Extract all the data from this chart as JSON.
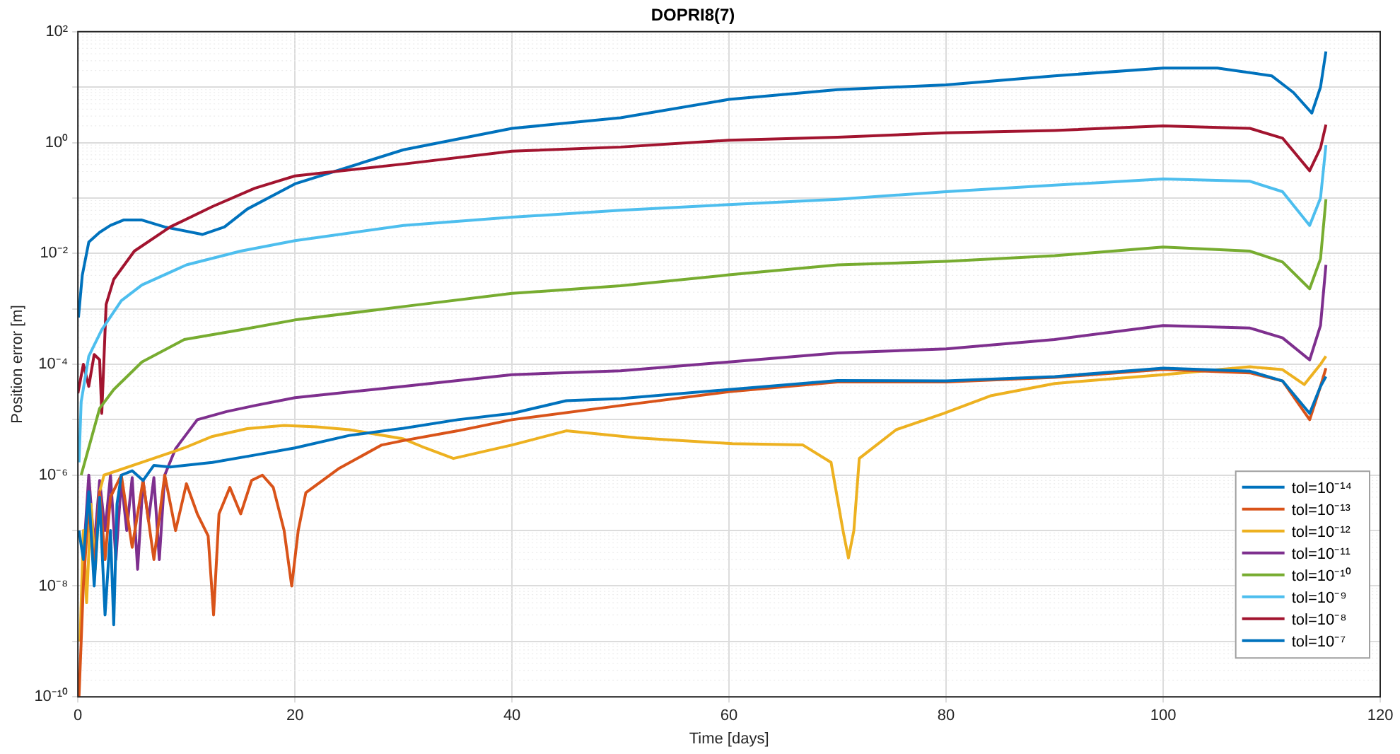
{
  "chart_data": {
    "type": "line",
    "title": "DOPRI8(7)",
    "xlabel": "Time [days]",
    "ylabel": "Position error [m]",
    "log": "y",
    "grid": true,
    "legend": "bottom right",
    "marker": "none",
    "line_style": "solid",
    "xlim": [
      0,
      120
    ],
    "xticks": [
      0,
      20,
      40,
      60,
      80,
      100,
      120
    ],
    "ylim": [
      1e-10,
      100
    ],
    "yticks": [
      {
        "value": 1e-10,
        "label": "10⁻¹⁰"
      },
      {
        "value": 1e-09,
        "label": null
      },
      {
        "value": 1e-08,
        "label": "10⁻⁸"
      },
      {
        "value": 1e-07,
        "label": null
      },
      {
        "value": 1e-06,
        "label": "10⁻⁶"
      },
      {
        "value": 1e-05,
        "label": null
      },
      {
        "value": 0.0001,
        "label": "10⁻⁴"
      },
      {
        "value": 0.001,
        "label": null
      },
      {
        "value": 0.01,
        "label": "10⁻²"
      },
      {
        "value": 0.1,
        "label": null
      },
      {
        "value": 1,
        "label": "10⁰"
      },
      {
        "value": 10,
        "label": null
      },
      {
        "value": 100,
        "label": "10²"
      }
    ],
    "series": [
      {
        "name": "tol=10⁻¹⁴",
        "color": "#0072bd",
        "x": [
          0.1,
          0.5,
          1,
          1.5,
          2,
          2.5,
          3,
          3.3,
          3.6,
          4,
          5,
          6,
          7,
          8.5,
          12.4,
          16.3,
          20,
          25,
          30,
          35,
          40,
          45,
          50,
          60,
          70,
          80,
          90,
          100,
          108,
          111,
          113.5,
          114.5,
          115
        ],
        "values": [
          1e-07,
          3e-08,
          5e-07,
          1e-08,
          4e-07,
          3e-09,
          1e-07,
          2e-09,
          3e-07,
          1e-06,
          1.2e-06,
          8e-07,
          1.5e-06,
          1.4e-06,
          1.7e-06,
          2.3e-06,
          3.1e-06,
          5.2e-06,
          7e-06,
          1e-05,
          1.3e-05,
          2.2e-05,
          2.4e-05,
          3.5e-05,
          5.1e-05,
          5e-05,
          6e-05,
          8.5e-05,
          7.5e-05,
          5e-05,
          1.3e-05,
          4e-05,
          6e-05
        ]
      },
      {
        "name": "tol=10⁻¹³",
        "color": "#d95319",
        "x": [
          0.1,
          0.5,
          1,
          1.5,
          2,
          2.5,
          3,
          4,
          5,
          6,
          7,
          8,
          9,
          10,
          11,
          12,
          12.5,
          13,
          14,
          15,
          16,
          17,
          18,
          19,
          19.7,
          20.3,
          21,
          24,
          28,
          30,
          35,
          40,
          50,
          60,
          70,
          80,
          90,
          100,
          108,
          111,
          113.5,
          114.5,
          115
        ],
        "values": [
          1e-10,
          1e-08,
          3e-07,
          2e-08,
          5e-07,
          3e-08,
          4e-07,
          1e-06,
          5e-08,
          8e-07,
          3e-08,
          1e-06,
          1e-07,
          7e-07,
          2e-07,
          8e-08,
          3e-09,
          2e-07,
          6e-07,
          2e-07,
          8e-07,
          1e-06,
          6e-07,
          1e-07,
          1e-08,
          1e-07,
          4.8e-07,
          1.3e-06,
          3.5e-06,
          4.2e-06,
          6.3e-06,
          1e-05,
          1.8e-05,
          3.2e-05,
          4.8e-05,
          4.8e-05,
          5.8e-05,
          8.1e-05,
          7e-05,
          5e-05,
          1e-05,
          4e-05,
          8.5e-05
        ]
      },
      {
        "name": "tol=10⁻¹²",
        "color": "#edb120",
        "x": [
          0.2,
          0.5,
          0.8,
          1.2,
          1.6,
          2,
          2.4,
          5.9,
          9.8,
          12.4,
          15.6,
          19,
          22,
          25,
          30,
          32,
          34.6,
          40,
          45,
          51.5,
          60.3,
          66.8,
          69.4,
          70.5,
          71,
          71.5,
          72,
          75.4,
          79.8,
          84.1,
          90,
          100,
          108,
          111,
          113,
          114.5,
          115
        ],
        "values": [
          1e-09,
          1e-07,
          5e-09,
          3e-07,
          2e-08,
          5e-07,
          1e-06,
          1.7e-06,
          3.1e-06,
          5e-06,
          6.9e-06,
          7.9e-06,
          7.4e-06,
          6.6e-06,
          4.5e-06,
          3.1e-06,
          2e-06,
          3.5e-06,
          6.3e-06,
          4.7e-06,
          3.7e-06,
          3.5e-06,
          1.7e-06,
          1e-07,
          3.2e-08,
          1e-07,
          2e-06,
          6.6e-06,
          1.3e-05,
          2.7e-05,
          4.5e-05,
          6.5e-05,
          9e-05,
          8e-05,
          4.3e-05,
          0.0001,
          0.00014
        ]
      },
      {
        "name": "tol=10⁻¹¹",
        "color": "#7e2f8e",
        "x": [
          0.5,
          1,
          1.5,
          2,
          2.5,
          3,
          3.5,
          4,
          4.5,
          5,
          5.5,
          6,
          6.5,
          7,
          7.5,
          8,
          9,
          11,
          13.7,
          16.3,
          20,
          30,
          40,
          50,
          60,
          70,
          80,
          90,
          100,
          108,
          111,
          113.5,
          114.5,
          115
        ],
        "values": [
          3e-08,
          1e-06,
          5e-08,
          8e-07,
          1e-07,
          1e-06,
          3e-08,
          8e-07,
          1e-07,
          9e-07,
          2e-08,
          8e-07,
          1.5e-07,
          9e-07,
          3e-08,
          1e-06,
          3e-06,
          1e-05,
          1.4e-05,
          1.8e-05,
          2.5e-05,
          4e-05,
          6.5e-05,
          7.6e-05,
          0.00011,
          0.00016,
          0.00019,
          0.00028,
          0.0005,
          0.00045,
          0.0003,
          0.00012,
          0.0005,
          0.0062
        ]
      },
      {
        "name": "tol=10⁻¹⁰",
        "color": "#77ac30",
        "x": [
          0.3,
          2,
          3.3,
          5.9,
          9.8,
          15,
          20,
          30,
          40,
          50,
          60,
          70,
          80,
          90,
          100,
          108,
          111,
          113.5,
          114.5,
          115
        ],
        "values": [
          1e-06,
          1.6e-05,
          3.5e-05,
          0.00011,
          0.00028,
          0.00042,
          0.00063,
          0.0011,
          0.0019,
          0.0026,
          0.0041,
          0.0062,
          0.0072,
          0.0091,
          0.013,
          0.011,
          0.007,
          0.0023,
          0.008,
          0.095
        ]
      },
      {
        "name": "tol=10⁻⁹",
        "color": "#4dbeee",
        "x": [
          0.1,
          0.3,
          1,
          2.2,
          4,
          5.9,
          10,
          15,
          20,
          30,
          40,
          50,
          60,
          70,
          80,
          90,
          100,
          108,
          111,
          113.5,
          114.5,
          115
        ],
        "values": [
          1.7e-06,
          2.1e-05,
          0.00014,
          0.00042,
          0.0014,
          0.0027,
          0.0062,
          0.011,
          0.017,
          0.032,
          0.045,
          0.06,
          0.076,
          0.095,
          0.13,
          0.17,
          0.22,
          0.2,
          0.13,
          0.032,
          0.1,
          0.9
        ]
      },
      {
        "name": "tol=10⁻⁸",
        "color": "#a2142f",
        "x": [
          0,
          0.5,
          1,
          1.5,
          2,
          2.2,
          2.6,
          3.3,
          5.2,
          8.5,
          12.4,
          16.3,
          20,
          30,
          40,
          50,
          60,
          70,
          80,
          90,
          100,
          108,
          111,
          113.5,
          114.5,
          115
        ],
        "values": [
          3e-05,
          0.0001,
          4e-05,
          0.00015,
          0.00012,
          1.3e-05,
          0.0012,
          0.0034,
          0.011,
          0.03,
          0.07,
          0.15,
          0.25,
          0.41,
          0.7,
          0.83,
          1.1,
          1.25,
          1.5,
          1.65,
          2,
          1.8,
          1.2,
          0.31,
          0.8,
          2.1
        ]
      },
      {
        "name": "tol=10⁻⁷",
        "color": "#0072bd",
        "x": [
          0.05,
          0.4,
          1,
          2,
          3,
          4.2,
          5.9,
          8,
          11.5,
          13.5,
          15.6,
          20,
          30,
          40,
          50,
          60,
          70,
          80,
          90,
          100,
          105,
          110,
          112,
          113.7,
          114.5,
          115
        ],
        "values": [
          0.0007,
          0.004,
          0.016,
          0.024,
          0.032,
          0.04,
          0.04,
          0.03,
          0.022,
          0.03,
          0.063,
          0.18,
          0.74,
          1.8,
          2.8,
          6,
          9,
          11,
          16,
          22,
          22,
          16,
          8,
          3.4,
          10,
          44
        ]
      }
    ]
  }
}
